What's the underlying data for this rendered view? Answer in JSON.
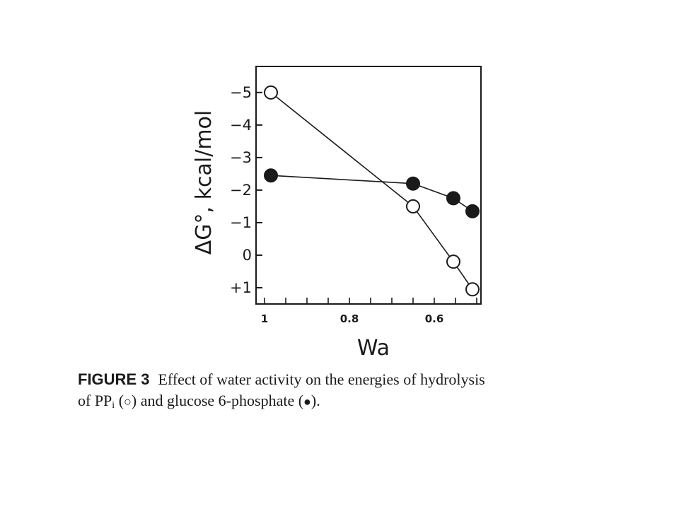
{
  "chart_data": {
    "type": "line",
    "xlabel": "Wa",
    "ylabel": "ΔG°, kcal/mol",
    "x_reversed": true,
    "xlim": [
      1.02,
      0.49
    ],
    "ylim": [
      1.5,
      -5.8
    ],
    "y_reversed": true,
    "grid": false,
    "y_ticks": [
      {
        "value": -5,
        "label": "−5"
      },
      {
        "value": -4,
        "label": "−4"
      },
      {
        "value": -3,
        "label": "−3"
      },
      {
        "value": -2,
        "label": "−2"
      },
      {
        "value": -1,
        "label": "−1"
      },
      {
        "value": 0,
        "label": "0"
      },
      {
        "value": 1,
        "label": "+1"
      }
    ],
    "x_ticks": [
      {
        "value": 1,
        "label": "1"
      },
      {
        "value": 0.8,
        "label": "0.8"
      },
      {
        "value": 0.6,
        "label": "0.6"
      }
    ],
    "series": [
      {
        "marker": "open-circle",
        "x": [
          0.985,
          0.65,
          0.555,
          0.51
        ],
        "y": [
          -5.0,
          -1.5,
          0.2,
          1.05
        ]
      },
      {
        "marker": "filled-circle",
        "x": [
          0.985,
          0.65,
          0.555,
          0.51
        ],
        "y": [
          -2.45,
          -2.2,
          -1.75,
          -1.35
        ]
      }
    ]
  },
  "caption": {
    "label": "FIGURE 3",
    "line1": "Effect of water activity on the energies of hydrolysis",
    "line2_a": "of PP",
    "line2_sub": "i",
    "line2_b": " (",
    "open_symbol": "○",
    "line2_c": ") and glucose 6-phosphate (",
    "filled_symbol": "●",
    "line2_d": ")."
  }
}
